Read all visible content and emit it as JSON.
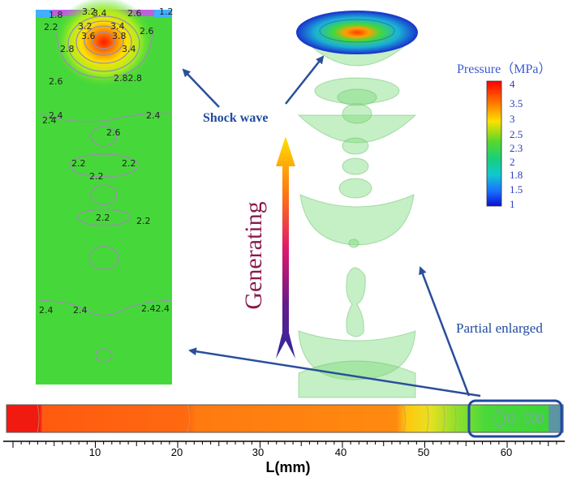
{
  "contour_labels": {
    "top": [
      "1.8",
      "3.2",
      "3.4",
      "2.6",
      "1.2",
      "2.2",
      "3.2",
      "3.4",
      "2.6",
      "3.6",
      "3.8",
      "3.4",
      "2.8",
      "2.6",
      "2.82.8"
    ],
    "mid": [
      "2.4",
      "2.4",
      "2.4",
      "2.6",
      "2.2",
      "2.2",
      "2.2",
      "2.2",
      "2.2"
    ],
    "bottom": [
      "2.4",
      "2.4",
      "2.42.4"
    ]
  },
  "labels": {
    "shock_wave": "Shock wave",
    "generating": "Generating",
    "partial_enlarged": "Partial enlarged"
  },
  "colorbar": {
    "title": "Pressure（MPa）",
    "ticks": [
      "4",
      "3.5",
      "3",
      "2.5",
      "2.3",
      "2",
      "1.8",
      "1.5",
      "1"
    ]
  },
  "axis": {
    "label": "L(mm)",
    "ticks": [
      "10",
      "20",
      "30",
      "40",
      "50",
      "60"
    ]
  },
  "colors": {
    "arrow_blue": "#2a4f9a",
    "generating_text": "#8a1a4a",
    "label_blue": "#1f4aa0",
    "field_green": "#3ad43a"
  }
}
